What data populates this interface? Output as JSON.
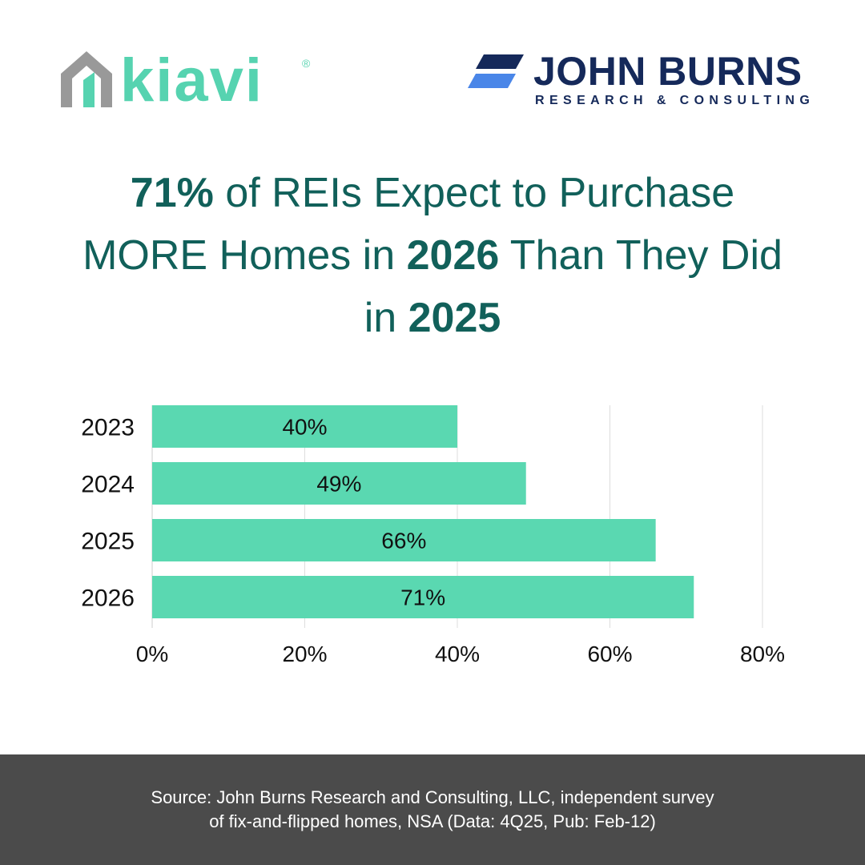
{
  "logos": {
    "kiavi": {
      "text": "kiavi",
      "mark": "®",
      "icon": "house-icon",
      "color": "#56d3b0",
      "icon_color": "#999999"
    },
    "john_burns": {
      "name": "JOHN BURNS",
      "subtitle": "RESEARCH & CONSULTING",
      "icon": "stripes-icon",
      "color": "#15295a",
      "icon_color": "#4a86e8"
    }
  },
  "headline": {
    "part1": "71%",
    "part2": " of REIs Expect to Purchase MORE Homes in ",
    "part3": "2026",
    "part4": " Than They Did in ",
    "part5": "2025"
  },
  "chart_data": {
    "type": "bar",
    "orientation": "horizontal",
    "categories": [
      "2023",
      "2024",
      "2025",
      "2026"
    ],
    "values": [
      40,
      49,
      66,
      71
    ],
    "data_labels": [
      "40%",
      "49%",
      "66%",
      "71%"
    ],
    "xlim": [
      0,
      80
    ],
    "x_ticks": [
      0,
      20,
      40,
      60,
      80
    ],
    "x_tick_labels": [
      "0%",
      "20%",
      "40%",
      "60%",
      "80%"
    ],
    "grid": true,
    "bar_color": "#5ad8b1"
  },
  "footer": {
    "source": "Source: John Burns Research and Consulting, LLC, independent survey\nof fix-and-flipped homes, NSA (Data: 4Q25, Pub: Feb-12)"
  }
}
